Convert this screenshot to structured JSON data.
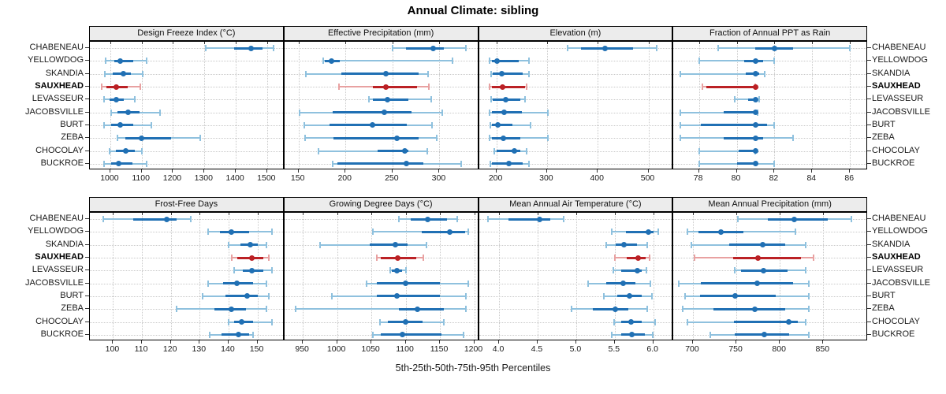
{
  "title": "Annual Climate: sibling",
  "caption": "5th-25th-50th-75th-95th Percentiles",
  "colors": {
    "blue_dark": "#2070b4",
    "blue_light": "#8fc1de",
    "red_dark": "#bb2125",
    "red_light": "#e8a1a1",
    "grid": "#c9c9c9",
    "strip_bg": "#ececec",
    "border": "#000000"
  },
  "stations": [
    {
      "label": "CHABENEAU",
      "highlight": false
    },
    {
      "label": "YELLOWDOG",
      "highlight": false
    },
    {
      "label": "SKANDIA",
      "highlight": false
    },
    {
      "label": "SAUXHEAD",
      "highlight": true
    },
    {
      "label": "LEVASSEUR",
      "highlight": false
    },
    {
      "label": "JACOBSVILLE",
      "highlight": false
    },
    {
      "label": "BURT",
      "highlight": false
    },
    {
      "label": "ZEBA",
      "highlight": false
    },
    {
      "label": "CHOCOLAY",
      "highlight": false
    },
    {
      "label": "BUCKROE",
      "highlight": false
    }
  ],
  "chart_data": {
    "type": "dotplot",
    "subtype": "percentile-range-plot",
    "percentile_labels": [
      "5th",
      "25th",
      "50th",
      "75th",
      "95th"
    ],
    "grid": "dotted",
    "layout": "2 rows x 4 columns of panels, shared station y-axis",
    "panels": [
      {
        "title": "Design Freeze Index (°C)",
        "domain": [
          950,
          1540
        ],
        "ticks": [
          1000,
          1100,
          1200,
          1300,
          1400,
          1500
        ],
        "tick_labels": [
          "1000",
          "1100",
          "1200",
          "1300",
          "1400",
          "1500"
        ],
        "values": [
          [
            1305,
            1395,
            1450,
            1485,
            1520
          ],
          [
            985,
            1013,
            1032,
            1072,
            1117
          ],
          [
            983,
            1009,
            1042,
            1066,
            1104
          ],
          [
            972,
            987,
            1019,
            1055,
            1096
          ],
          [
            981,
            998,
            1020,
            1043,
            1079
          ],
          [
            1002,
            1024,
            1058,
            1094,
            1158
          ],
          [
            979,
            1004,
            1032,
            1072,
            1130
          ],
          [
            1024,
            1047,
            1100,
            1194,
            1287
          ],
          [
            998,
            1019,
            1049,
            1077,
            1100
          ],
          [
            981,
            1004,
            1027,
            1070,
            1115
          ]
        ]
      },
      {
        "title": "Effective Precipitation (mm)",
        "domain": [
          140,
          337
        ],
        "ticks": [
          150,
          200,
          250,
          300
        ],
        "tick_labels": [
          "150",
          "200",
          "250",
          "300"
        ],
        "values": [
          [
            250,
            264,
            293,
            305,
            328
          ],
          [
            176,
            178,
            185,
            194,
            314
          ],
          [
            158,
            196,
            243,
            278,
            288
          ],
          [
            193,
            229,
            243,
            276,
            289
          ],
          [
            225,
            229,
            245,
            267,
            291
          ],
          [
            151,
            186,
            241,
            270,
            303
          ],
          [
            156,
            183,
            229,
            265,
            292
          ],
          [
            157,
            187,
            255,
            278,
            297
          ],
          [
            171,
            234,
            263,
            267,
            287
          ],
          [
            186,
            191,
            265,
            283,
            323
          ]
        ]
      },
      {
        "title": "Elevation (m)",
        "domain": [
          175,
          540
        ],
        "ticks": [
          200,
          300,
          400,
          500
        ],
        "tick_labels": [
          "200",
          "300",
          "400",
          "500"
        ],
        "values": [
          [
            340,
            367,
            415,
            470,
            516
          ],
          [
            187,
            191,
            202,
            244,
            264
          ],
          [
            189,
            193,
            211,
            252,
            265
          ],
          [
            186,
            191,
            212,
            257,
            260
          ],
          [
            189,
            193,
            219,
            247,
            257
          ],
          [
            187,
            191,
            215,
            250,
            302
          ],
          [
            188,
            191,
            203,
            232,
            267
          ],
          [
            187,
            191,
            214,
            248,
            302
          ],
          [
            196,
            201,
            236,
            247,
            260
          ],
          [
            188,
            192,
            224,
            252,
            265
          ]
        ]
      },
      {
        "title": "Fraction of Annual PPT as Rain",
        "domain": [
          76.9,
          86.7
        ],
        "ticks": [
          78,
          80,
          82,
          84,
          86
        ],
        "tick_labels": [
          "78",
          "80",
          "82",
          "84",
          "86"
        ],
        "values": [
          [
            79,
            81,
            82,
            83,
            86
          ],
          [
            78,
            80.4,
            81,
            81.4,
            82
          ],
          [
            77,
            80.5,
            81,
            81.2,
            81.5
          ],
          [
            78.2,
            78.4,
            81,
            81,
            81
          ],
          [
            79.9,
            80.6,
            81,
            81.1,
            81.2
          ],
          [
            77,
            79.3,
            81,
            81,
            81.1
          ],
          [
            77,
            78.1,
            81,
            81.6,
            82
          ],
          [
            77,
            79.3,
            81,
            81.4,
            83
          ],
          [
            78,
            80.1,
            81,
            81,
            81
          ],
          [
            78,
            80,
            81,
            81.1,
            82
          ]
        ]
      },
      {
        "title": "Frost-Free Days",
        "domain": [
          93.6,
          157.7
        ],
        "ticks": [
          100,
          110,
          120,
          130,
          140,
          150
        ],
        "tick_labels": [
          "100",
          "110",
          "120",
          "130",
          "140",
          "150"
        ],
        "values": [
          [
            96.5,
            107,
            118.5,
            122,
            127
          ],
          [
            133,
            137,
            141,
            147,
            155
          ],
          [
            140,
            144,
            147.5,
            150,
            153
          ],
          [
            141,
            143,
            148,
            152,
            154
          ],
          [
            142,
            145,
            148,
            152,
            155
          ],
          [
            133,
            138,
            143,
            148.5,
            153
          ],
          [
            131,
            139,
            146.5,
            150,
            154
          ],
          [
            122,
            135,
            141,
            146,
            153
          ],
          [
            140,
            142,
            144.5,
            148.5,
            155
          ],
          [
            133.5,
            137.5,
            143.5,
            147,
            148.5
          ]
        ]
      },
      {
        "title": "Growing Degree Days (°C)",
        "domain": [
          930,
          1200
        ],
        "ticks": [
          950,
          1000,
          1050,
          1100,
          1150,
          1200
        ],
        "tick_labels": [
          "950",
          "1000",
          "1050",
          "1100",
          "1150",
          "1200"
        ],
        "values": [
          [
            1090,
            1107,
            1132,
            1160,
            1175
          ],
          [
            1052,
            1123,
            1164,
            1187,
            1191
          ],
          [
            975,
            1048,
            1085,
            1103,
            1130
          ],
          [
            1058,
            1064,
            1088,
            1115,
            1126
          ],
          [
            1077,
            1080,
            1087,
            1095,
            1101
          ],
          [
            1043,
            1058,
            1100,
            1150,
            1191
          ],
          [
            992,
            1058,
            1087,
            1150,
            1188
          ],
          [
            940,
            1090,
            1117,
            1156,
            1188
          ],
          [
            1063,
            1074,
            1100,
            1125,
            1156
          ],
          [
            1052,
            1064,
            1095,
            1152,
            1185
          ]
        ]
      },
      {
        "title": "Mean Annual Air Temperature (°C)",
        "domain": [
          3.8,
          6.2
        ],
        "ticks": [
          4.0,
          4.5,
          5.0,
          5.5,
          6.0
        ],
        "tick_labels": [
          "4.0",
          "4.5",
          "5.0",
          "5.5",
          "6.0"
        ],
        "values": [
          [
            3.86,
            4.12,
            4.53,
            4.66,
            4.84
          ],
          [
            5.46,
            5.65,
            5.94,
            6.0,
            6.06
          ],
          [
            5.39,
            5.51,
            5.62,
            5.79,
            5.92
          ],
          [
            5.5,
            5.66,
            5.8,
            5.9,
            5.95
          ],
          [
            5.48,
            5.58,
            5.79,
            5.85,
            5.91
          ],
          [
            5.15,
            5.39,
            5.61,
            5.77,
            5.96
          ],
          [
            5.36,
            5.53,
            5.69,
            5.85,
            5.98
          ],
          [
            4.94,
            5.22,
            5.51,
            5.68,
            5.92
          ],
          [
            5.49,
            5.58,
            5.71,
            5.85,
            6.02
          ],
          [
            5.46,
            5.58,
            5.72,
            5.89,
            5.99
          ]
        ]
      },
      {
        "title": "Mean Annual Precipitation (mm)",
        "domain": [
          683,
          896
        ],
        "ticks": [
          700,
          750,
          800,
          850
        ],
        "tick_labels": [
          "700",
          "750",
          "800",
          "850"
        ],
        "values": [
          [
            752,
            786,
            817,
            855,
            882
          ],
          [
            694,
            706,
            732,
            758,
            818
          ],
          [
            698,
            742,
            780,
            806,
            830
          ],
          [
            702,
            746,
            775,
            824,
            839
          ],
          [
            748,
            755,
            781,
            809,
            830
          ],
          [
            684,
            709,
            774,
            815,
            833
          ],
          [
            691,
            708,
            749,
            795,
            833
          ],
          [
            688,
            724,
            771,
            806,
            833
          ],
          [
            694,
            747,
            810,
            821,
            830
          ],
          [
            720,
            748,
            782,
            811,
            833
          ]
        ]
      }
    ]
  }
}
